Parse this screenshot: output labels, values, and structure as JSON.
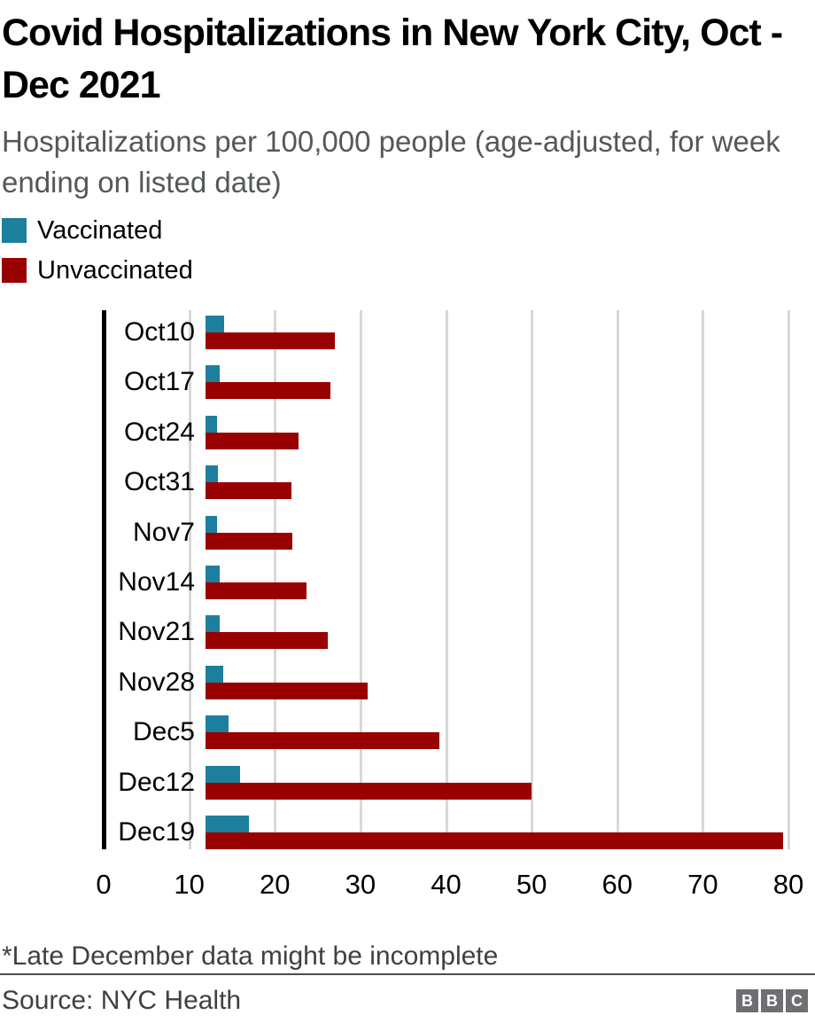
{
  "header": {
    "title": "Covid Hospitalizations in New York City, Oct - Dec 2021",
    "subtitle": "Hospitalizations per 100,000 people (age-adjusted, for week ending on listed date)"
  },
  "legend": [
    {
      "label": "Vaccinated",
      "color": "#1d7f9e"
    },
    {
      "label": "Unvaccinated",
      "color": "#990000"
    }
  ],
  "chart_data": {
    "type": "bar",
    "orientation": "horizontal",
    "title": "Covid Hospitalizations in New York City, Oct - Dec 2021",
    "xlabel": "",
    "ylabel": "",
    "categories": [
      "Oct10",
      "Oct17",
      "Oct24",
      "Oct31",
      "Nov7",
      "Nov14",
      "Nov21",
      "Nov28",
      "Dec5",
      "Dec12",
      "Dec19"
    ],
    "series": [
      {
        "name": "Vaccinated",
        "color": "#1d7f9e",
        "values": [
          2.6,
          2.0,
          1.6,
          1.7,
          1.6,
          2.0,
          2.0,
          2.4,
          3.2,
          4.7,
          5.9
        ]
      },
      {
        "name": "Unvaccinated",
        "color": "#990000",
        "values": [
          17.7,
          17.1,
          12.8,
          11.8,
          11.9,
          13.8,
          16.8,
          22.2,
          32.1,
          44.8,
          79.3
        ]
      }
    ],
    "xlim": [
      0,
      80
    ],
    "x_ticks": [
      0,
      10,
      20,
      30,
      40,
      50,
      60,
      70,
      80
    ],
    "grid": "vertical-gridlines-on",
    "legend_position": "top-left"
  },
  "footer": {
    "note": "*Late December data might be incomplete",
    "source": "Source: NYC Health",
    "logo_letters": [
      "B",
      "B",
      "C"
    ]
  },
  "colors": {
    "vaccinated": "#1d7f9e",
    "unvaccinated": "#990000",
    "gridline": "#d8d8d8",
    "axis": "#000000",
    "subtitle_text": "#545859",
    "footer_text": "#404040",
    "logo_block": "#6e6e73"
  }
}
